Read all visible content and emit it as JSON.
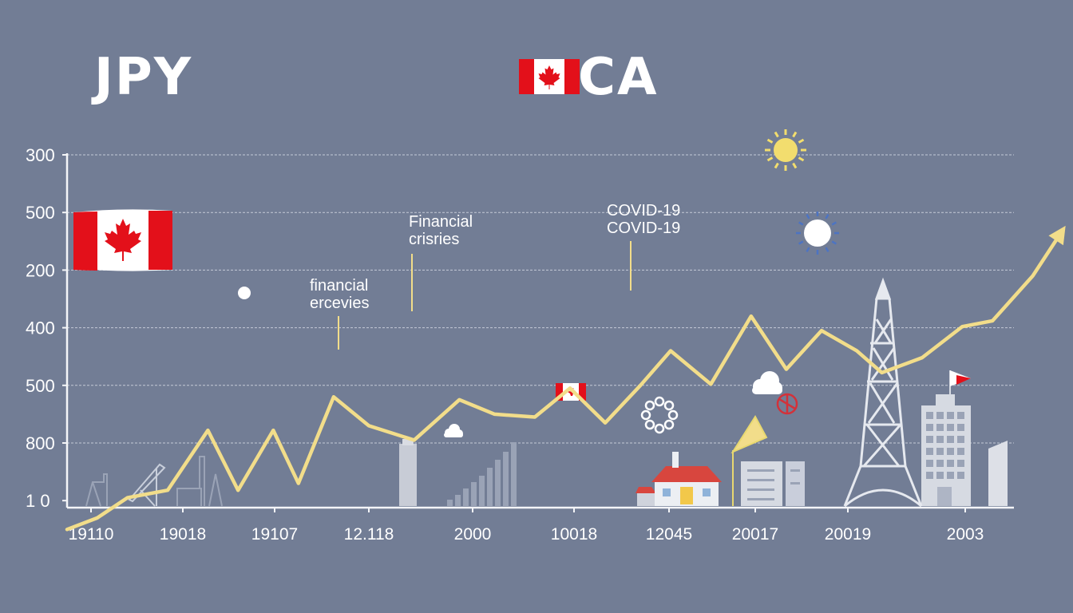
{
  "titles": {
    "left": "JPY",
    "right": "CA"
  },
  "colors": {
    "background": "#727d95",
    "line": "#f2dd8a",
    "axis": "#f4f5f8",
    "grid": "#c4cad6",
    "text": "#ffffff",
    "flag_red": "#e3101a",
    "building": "#d4d8e0",
    "building_dark": "#9aa3b6"
  },
  "chart_data": {
    "type": "line",
    "title": "",
    "xlabel": "",
    "ylabel": "",
    "y_tick_labels": [
      "300",
      "500",
      "200",
      "400",
      "500",
      "800",
      "1 0"
    ],
    "x_tick_labels": [
      "19110",
      "19018",
      "19107",
      "12.118",
      "2000",
      "10018",
      "12045",
      "20017",
      "20019",
      "2003"
    ],
    "grid": true,
    "legend": "none",
    "series": [
      {
        "x": [
          0,
          0.3,
          0.6,
          1.0,
          1.4,
          1.7,
          2.05,
          2.3,
          2.65,
          3.0,
          3.45,
          3.9,
          4.25,
          4.65,
          5.0,
          5.35,
          5.7,
          6.0,
          6.4,
          6.8,
          7.15,
          7.5,
          7.85,
          8.1,
          8.5,
          8.9,
          9.2,
          9.6,
          9.9
        ],
        "values": [
          6.5,
          6.3,
          5.95,
          5.82,
          4.78,
          5.82,
          4.78,
          5.7,
          4.2,
          4.7,
          4.95,
          4.25,
          4.5,
          4.55,
          4.05,
          4.65,
          4.0,
          3.4,
          3.98,
          2.8,
          3.72,
          3.05,
          3.4,
          3.78,
          3.52,
          2.98,
          2.88,
          2.1,
          1.3
        ]
      }
    ],
    "annotations": [
      {
        "line1": "Financial",
        "line2": "crisries",
        "x": 3.95,
        "y": 3.5
      },
      {
        "line1": "financial",
        "line2": "ercevies",
        "x": 3.0,
        "y": 4.25
      },
      {
        "line1": "COVID-19",
        "line2": "COVID-19",
        "x": 6.0,
        "y": 3.9
      }
    ]
  }
}
